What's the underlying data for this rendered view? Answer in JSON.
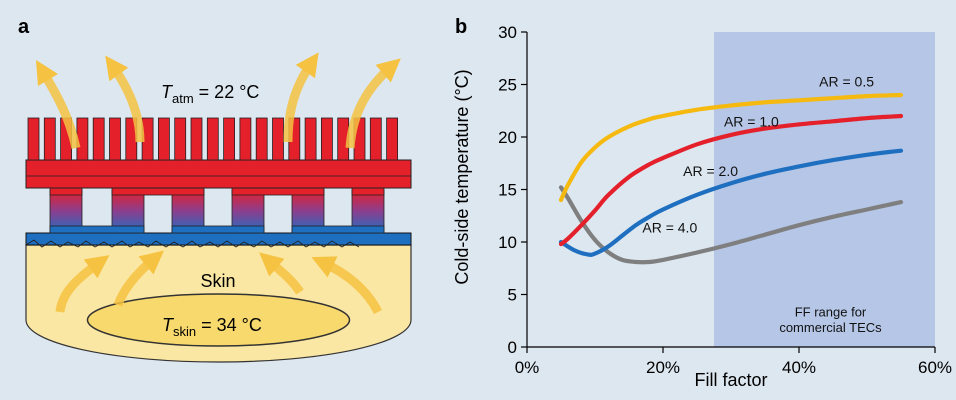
{
  "panel_a": {
    "label": "a",
    "t_atm_symbol": "T",
    "t_atm_sub": "atm",
    "t_atm_value": " = 22 °C",
    "skin_label": "Skin",
    "t_skin_symbol": "T",
    "t_skin_sub": "skin",
    "t_skin_value": " = 34 °C"
  },
  "panel_b": {
    "label": "b"
  },
  "colors": {
    "background": "#dde7f0",
    "ff_range_shade": "#b5c6e6",
    "heat_arrow": "#f5c242",
    "sink_red": "#e4202b",
    "plate_blue": "#1f6fc1",
    "skin_fill": "#fbe7a4"
  },
  "chart_data": {
    "type": "line",
    "xlabel": "Fill factor",
    "ylabel": "Cold-side temperature (°C)",
    "xlim": [
      0,
      60
    ],
    "ylim": [
      0,
      30
    ],
    "x_ticks": [
      0,
      20,
      40,
      60
    ],
    "x_tick_labels": [
      "0%",
      "20%",
      "40%",
      "60%"
    ],
    "y_ticks": [
      0,
      5,
      10,
      15,
      20,
      25,
      30
    ],
    "y_tick_labels": [
      "0",
      "5",
      "10",
      "15",
      "20",
      "25",
      "30"
    ],
    "grid": false,
    "shaded_region": {
      "x": [
        27.5,
        60
      ],
      "label": [
        "FF range for",
        "commercial TECs"
      ]
    },
    "series": [
      {
        "name": "AR = 0.5",
        "color": "#f5b90f",
        "x": [
          5,
          6,
          8,
          10,
          12,
          15,
          18,
          20,
          25,
          30,
          35,
          40,
          45,
          50,
          55
        ],
        "y": [
          14.0,
          15.4,
          17.6,
          19.0,
          20.0,
          21.0,
          21.7,
          22.0,
          22.6,
          23.0,
          23.3,
          23.5,
          23.7,
          23.9,
          24.0
        ]
      },
      {
        "name": "AR = 1.0",
        "color": "#e4202b",
        "x": [
          5,
          6,
          8,
          10,
          12,
          15,
          18,
          20,
          25,
          30,
          35,
          40,
          45,
          50,
          55
        ],
        "y": [
          9.8,
          10.3,
          11.6,
          13.0,
          14.5,
          16.2,
          17.4,
          18.0,
          19.3,
          20.2,
          20.8,
          21.2,
          21.5,
          21.8,
          22.0
        ]
      },
      {
        "name": "AR = 2.0",
        "color": "#1f6fc1",
        "x": [
          5,
          7,
          9,
          10,
          12,
          14,
          16,
          18,
          20,
          25,
          30,
          35,
          40,
          45,
          50,
          55
        ],
        "y": [
          10.0,
          9.2,
          8.8,
          8.9,
          9.6,
          10.6,
          11.6,
          12.4,
          13.1,
          14.5,
          15.6,
          16.5,
          17.2,
          17.8,
          18.3,
          18.7
        ]
      },
      {
        "name": "AR = 4.0",
        "color": "#7f7f7f",
        "x": [
          5,
          6,
          8,
          10,
          12,
          14,
          16,
          18,
          20,
          25,
          30,
          35,
          40,
          45,
          50,
          55
        ],
        "y": [
          15.2,
          14.2,
          12.0,
          10.2,
          9.0,
          8.3,
          8.1,
          8.1,
          8.3,
          9.0,
          9.8,
          10.7,
          11.6,
          12.4,
          13.1,
          13.8
        ]
      }
    ],
    "annotations": [
      {
        "text": "AR = 0.5",
        "x": 47,
        "y": 24.8
      },
      {
        "text": "AR = 1.0",
        "x": 33,
        "y": 21.0
      },
      {
        "text": "AR = 2.0",
        "x": 27,
        "y": 16.3
      },
      {
        "text": "AR = 4.0",
        "x": 21,
        "y": 10.9
      }
    ]
  }
}
